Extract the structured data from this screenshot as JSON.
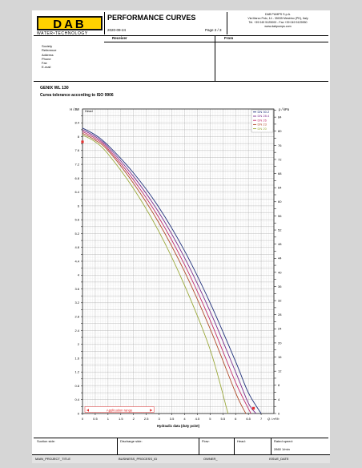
{
  "header": {
    "logo_text": "DAB",
    "logo_tagline": "WATER•TECHNOLOGY",
    "title": "PERFORMANCE CURVES",
    "date": "2020-09-24",
    "page": "Page 2 / 3",
    "company_lines": [
      "DAB PUMPS S.p.A.",
      "Via Marco Polo, 14 - 35035 Mestrino (PD), Italy",
      "Tel. +39 049 5125000 - Fax +39 049 5125950",
      "www.dabpumps.com"
    ]
  },
  "contact": {
    "receiver_label": "Receiver",
    "from_label": "From",
    "fields": [
      "Society",
      "Reference",
      "Address",
      "Phone",
      "Fax",
      "E-mail"
    ]
  },
  "product": {
    "name": "GENIX WL 130",
    "tolerance": "Curva tolerance according to ISO 9906"
  },
  "footer": {
    "row1": [
      "Suction side:",
      "Discharge side:",
      "Flow:",
      "Head:",
      "Rated speed:"
    ],
    "rated_speed_value": "2860 1/min",
    "row2": [
      "MAIN_PROJECT_TITLE",
      "BUSINESS_PROCESS_ID",
      "OWNER_",
      "ISSUE_DATE"
    ]
  },
  "chart_data": {
    "type": "line",
    "ylabel": "H / m",
    "ylabel_right": "p / kPa",
    "head_tag": "Head",
    "xlabel": "Hydraulic data (duty point)",
    "xunit": "Q / m³/h",
    "xlim": [
      0,
      7.5
    ],
    "ylim": [
      0,
      8.8
    ],
    "ylim_right": [
      0,
      86.3
    ],
    "x_ticks": [
      "0",
      "0.5",
      "1",
      "1.5",
      "2",
      "2.5",
      "3",
      "3.5",
      "4",
      "4.5",
      "5",
      "5.5",
      "6",
      "6.5",
      "7"
    ],
    "y_ticks": [
      "0",
      "0.2",
      "0.4",
      "0.6",
      "0.8",
      "1",
      "1.2",
      "1.4",
      "1.6",
      "1.8",
      "2",
      "2.2",
      "2.4",
      "2.6",
      "2.8",
      "3",
      "3.2",
      "3.4",
      "3.6",
      "3.8",
      "4",
      "4.2",
      "4.4",
      "4.6",
      "4.8",
      "5",
      "5.2",
      "5.4",
      "5.6",
      "5.8",
      "6",
      "6.2",
      "6.4",
      "6.6",
      "6.8",
      "7",
      "7.2",
      "7.4",
      "7.6",
      "7.8",
      "8",
      "8.2",
      "8.4",
      "8.6"
    ],
    "y_tick_labels": [
      "0",
      "0.4",
      "0.8",
      "1.2",
      "1.6",
      "2",
      "2.4",
      "2.8",
      "3.2",
      "3.6",
      "4",
      "4.4",
      "4.8",
      "5.2",
      "5.6",
      "6",
      "6.4",
      "6.8",
      "7.2",
      "7.6",
      "8",
      "8.4",
      "8.8"
    ],
    "y_right_ticks": [
      "0",
      "2",
      "4",
      "6",
      "8",
      "10",
      "12",
      "14",
      "16",
      "18",
      "20",
      "22",
      "24",
      "26",
      "28",
      "30",
      "32",
      "34",
      "36",
      "38",
      "40",
      "42",
      "44",
      "46",
      "48",
      "50",
      "52",
      "54",
      "56",
      "58",
      "60",
      "62",
      "64",
      "66",
      "68",
      "70",
      "72",
      "74",
      "76",
      "78",
      "80",
      "82",
      "84",
      "86"
    ],
    "y_right_tick_labels": [
      "0",
      "4",
      "8",
      "12",
      "16",
      "20",
      "24",
      "28",
      "32",
      "36",
      "40",
      "44",
      "48",
      "52",
      "56",
      "60",
      "64",
      "68",
      "72",
      "76",
      "80",
      "84"
    ],
    "grid": true,
    "legend_position": "top-right",
    "series": [
      {
        "name": "DN 30.2",
        "color": "#1f2f7a",
        "x": [
          0,
          0.5,
          1,
          2,
          3,
          4,
          5,
          6,
          6.5,
          7.0
        ],
        "y": [
          8.25,
          8.05,
          7.75,
          6.95,
          5.95,
          4.7,
          3.2,
          1.5,
          0.6,
          0.0
        ]
      },
      {
        "name": "DN 28.4",
        "color": "#7a2b8c",
        "x": [
          0,
          0.5,
          1,
          2,
          3,
          4,
          5,
          6,
          6.5,
          6.8
        ],
        "y": [
          8.2,
          8.0,
          7.7,
          6.85,
          5.8,
          4.5,
          2.95,
          1.2,
          0.3,
          0.0
        ]
      },
      {
        "name": "DN 26",
        "color": "#c22a6a",
        "x": [
          0,
          0.5,
          1,
          2,
          3,
          4,
          5,
          6,
          6.6
        ],
        "y": [
          8.15,
          7.95,
          7.65,
          6.75,
          5.65,
          4.3,
          2.7,
          0.9,
          0.0
        ]
      },
      {
        "name": "DN 23",
        "color": "#b04a2a",
        "x": [
          0,
          0.5,
          1,
          2,
          3,
          4,
          5,
          6,
          6.4
        ],
        "y": [
          8.1,
          7.9,
          7.6,
          6.65,
          5.5,
          4.1,
          2.45,
          0.6,
          0.0
        ]
      },
      {
        "name": "DN 20",
        "color": "#9aa83a",
        "x": [
          0,
          0.5,
          1,
          2,
          3,
          4,
          5,
          5.7
        ],
        "y": [
          8.05,
          7.85,
          7.5,
          6.5,
          5.25,
          3.7,
          1.85,
          0.0
        ]
      }
    ],
    "markers": [
      {
        "x": 0,
        "y": 7.85,
        "color": "#e53030"
      },
      {
        "x": 6.7,
        "y": 0.15,
        "color": "#e53030"
      }
    ],
    "application_range": {
      "label": "Application range",
      "from": 0,
      "to": 2.8
    }
  }
}
